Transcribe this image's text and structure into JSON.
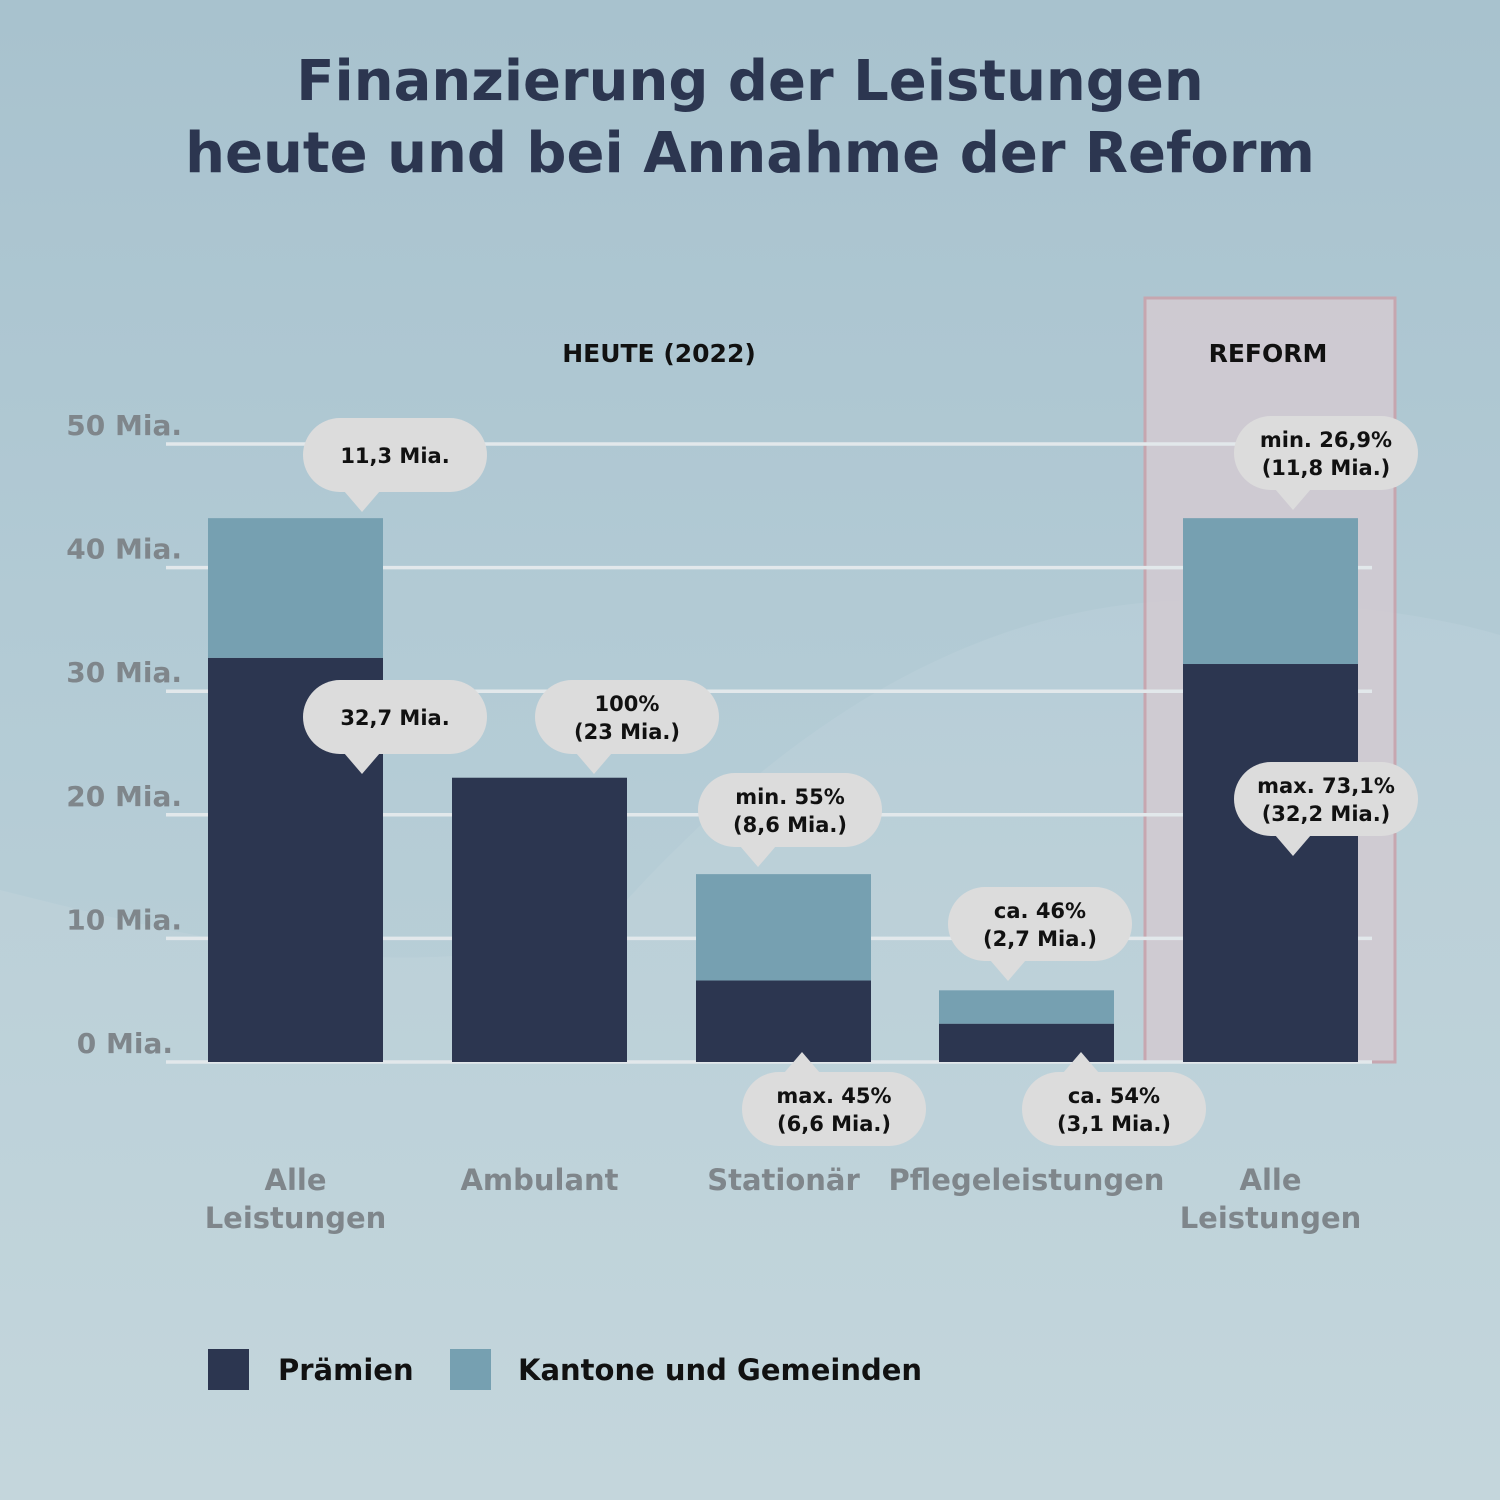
{
  "chart_data": {
    "type": "bar",
    "stacked": true,
    "title": [
      "Finanzierung der Leistungen",
      "heute und bei Annahme der Reform"
    ],
    "group_labels": {
      "heute": "HEUTE (2022)",
      "reform": "REFORM"
    },
    "categories": [
      [
        "Alle",
        "Leistungen"
      ],
      [
        "Ambulant"
      ],
      [
        "Stationär"
      ],
      [
        "Pflegeleistungen"
      ],
      [
        "Alle",
        "Leistungen"
      ]
    ],
    "groups": [
      "heute",
      "heute",
      "heute",
      "heute",
      "reform"
    ],
    "series": [
      {
        "name": "Prämien",
        "color": "#2c3650",
        "values": [
          32.7,
          23,
          6.6,
          3.1,
          32.2
        ]
      },
      {
        "name": "Kantone und Gemeinden",
        "color": "#76a0b1",
        "values": [
          11.3,
          0,
          8.6,
          2.7,
          11.8
        ]
      }
    ],
    "y_ticks": [
      {
        "value": 0,
        "label": "0 Mia."
      },
      {
        "value": 10,
        "label": "10 Mia."
      },
      {
        "value": 20,
        "label": "20 Mia."
      },
      {
        "value": 30,
        "label": "30 Mia."
      },
      {
        "value": 40,
        "label": "40 Mia."
      },
      {
        "value": 50,
        "label": "50 Mia."
      }
    ],
    "ylim": [
      0,
      50
    ],
    "grid": true,
    "legend_placement": "bottom-left",
    "annotations": [
      {
        "category": 0,
        "series": 1,
        "lines": [
          "11,3 Mia."
        ]
      },
      {
        "category": 0,
        "series": 0,
        "lines": [
          "32,7 Mia."
        ]
      },
      {
        "category": 1,
        "series": 0,
        "lines": [
          "100%",
          "(23 Mia.)"
        ]
      },
      {
        "category": 2,
        "series": 1,
        "lines": [
          "min. 55%",
          "(8,6 Mia.)"
        ]
      },
      {
        "category": 2,
        "series": 0,
        "lines": [
          "max. 45%",
          "(6,6 Mia.)"
        ]
      },
      {
        "category": 3,
        "series": 1,
        "lines": [
          "ca. 46%",
          "(2,7 Mia.)"
        ]
      },
      {
        "category": 3,
        "series": 0,
        "lines": [
          "ca. 54%",
          "(3,1 Mia.)"
        ]
      },
      {
        "category": 4,
        "series": 1,
        "lines": [
          "min. 26,9%",
          "(11,8 Mia.)"
        ]
      },
      {
        "category": 4,
        "series": 0,
        "lines": [
          "max. 73,1%",
          "(32,2 Mia.)"
        ]
      }
    ],
    "colors": {
      "title": "#2c3650",
      "axis_text": "#7f868b",
      "grid": "#e2e8eb",
      "callout": "#dcdcdc",
      "reform_box": "#d2cbd2",
      "reform_border": "#c9a3ac"
    }
  }
}
